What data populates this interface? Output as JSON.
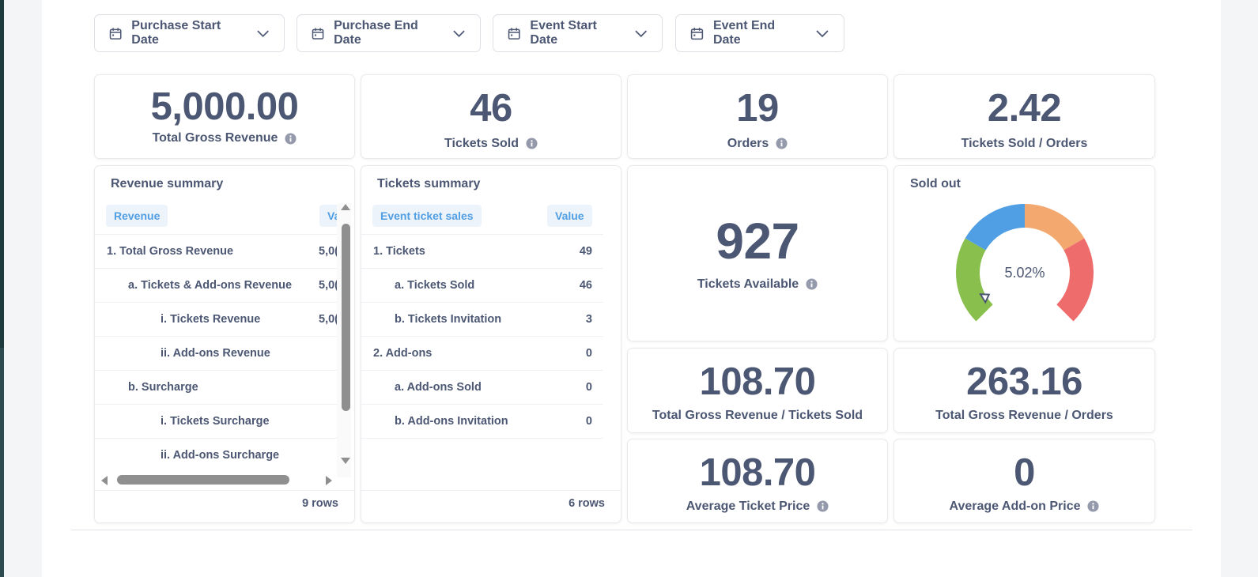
{
  "filters": [
    {
      "label": "Purchase Start Date",
      "icon": "calendar-icon"
    },
    {
      "label": "Purchase End Date",
      "icon": "calendar-icon"
    },
    {
      "label": "Event Start Date",
      "icon": "calendar-icon"
    },
    {
      "label": "Event End Date",
      "icon": "calendar-icon"
    }
  ],
  "metrics": {
    "total_gross_revenue": {
      "value": "5,000.00",
      "label": "Total Gross Revenue"
    },
    "tickets_sold": {
      "value": "46",
      "label": "Tickets Sold"
    },
    "orders": {
      "value": "19",
      "label": "Orders"
    },
    "tickets_per_order": {
      "value": "2.42",
      "label": "Tickets Sold / Orders"
    },
    "tickets_available": {
      "value": "927",
      "label": "Tickets Available"
    },
    "revenue_per_ticket": {
      "value": "108.70",
      "label": "Total Gross Revenue / Tickets Sold"
    },
    "revenue_per_order": {
      "value": "263.16",
      "label": "Total Gross Revenue / Orders"
    },
    "average_ticket_price": {
      "value": "108.70",
      "label": "Average Ticket Price"
    },
    "average_addon_price": {
      "value": "0",
      "label": "Average Add-on Price"
    }
  },
  "revenue_summary": {
    "title": "Revenue summary",
    "columns": [
      "Revenue",
      "Va"
    ],
    "rows": [
      {
        "label": "1. Total Gross Revenue",
        "value": "5,0("
      },
      {
        "label": "a. Tickets & Add-ons Revenue",
        "value": "5,0("
      },
      {
        "label": "i. Tickets Revenue",
        "value": "5,0("
      },
      {
        "label": "ii. Add-ons Revenue",
        "value": ""
      },
      {
        "label": "b. Surcharge",
        "value": ""
      },
      {
        "label": "i. Tickets Surcharge",
        "value": ""
      },
      {
        "label": "ii. Add-ons Surcharge",
        "value": ""
      }
    ],
    "row_count": "9 rows"
  },
  "tickets_summary": {
    "title": "Tickets summary",
    "columns": [
      "Event ticket sales",
      "Value"
    ],
    "rows": [
      {
        "label": "1. Tickets",
        "value": "49"
      },
      {
        "label": "a. Tickets Sold",
        "value": "46"
      },
      {
        "label": "b. Tickets Invitation",
        "value": "3"
      },
      {
        "label": "2. Add-ons",
        "value": "0"
      },
      {
        "label": "a. Add-ons Sold",
        "value": "0"
      },
      {
        "label": "b. Add-ons Invitation",
        "value": "0"
      }
    ],
    "row_count": "6 rows"
  },
  "sold_out_gauge": {
    "title": "Sold out",
    "value_label": "5.02%",
    "value_percent": 5.02,
    "segment_colors": [
      "#88bf4d",
      "#509ee3",
      "#f2a86f",
      "#ef6c6c"
    ]
  },
  "colors": {
    "text": "#4c5773",
    "accent": "#509ee3",
    "header_pill_bg": "#edf3fa"
  }
}
